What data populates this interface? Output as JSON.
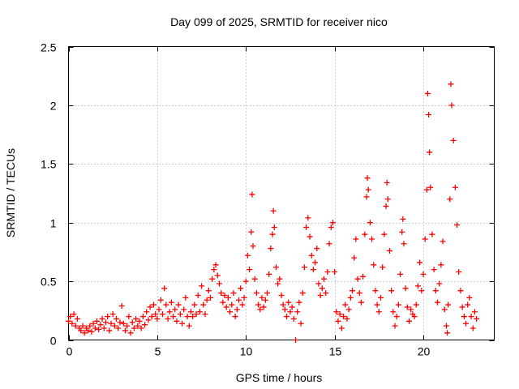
{
  "chart_data": {
    "type": "scatter",
    "title": "Day 099 of 2025, SRMTID for receiver nico",
    "xlabel": "GPS time / hours",
    "ylabel": "SRMTID / TECUs",
    "xlim": [
      0,
      24
    ],
    "ylim": [
      0,
      2.5
    ],
    "x_ticks": [
      0,
      5,
      10,
      15,
      20
    ],
    "x_tick_labels": [
      "0",
      "5",
      "10",
      "15",
      "20"
    ],
    "y_ticks": [
      0,
      0.5,
      1,
      1.5,
      2,
      2.5
    ],
    "y_tick_labels": [
      "0",
      "0.5",
      "1",
      "1.5",
      "2",
      "2.5"
    ],
    "grid": true,
    "marker": "plus",
    "series": [
      {
        "name": "SRMTID",
        "color": "#ff0000",
        "points": [
          [
            0.0,
            0.16
          ],
          [
            0.1,
            0.2
          ],
          [
            0.2,
            0.14
          ],
          [
            0.3,
            0.22
          ],
          [
            0.4,
            0.12
          ],
          [
            0.5,
            0.18
          ],
          [
            0.6,
            0.1
          ],
          [
            0.7,
            0.08
          ],
          [
            0.8,
            0.12
          ],
          [
            0.9,
            0.06
          ],
          [
            1.0,
            0.1
          ],
          [
            1.1,
            0.08
          ],
          [
            1.2,
            0.12
          ],
          [
            1.3,
            0.07
          ],
          [
            1.4,
            0.14
          ],
          [
            1.5,
            0.1
          ],
          [
            1.6,
            0.16
          ],
          [
            1.7,
            0.09
          ],
          [
            1.8,
            0.13
          ],
          [
            1.9,
            0.18
          ],
          [
            2.0,
            0.1
          ],
          [
            2.1,
            0.15
          ],
          [
            2.2,
            0.2
          ],
          [
            2.3,
            0.08
          ],
          [
            2.4,
            0.14
          ],
          [
            2.5,
            0.22
          ],
          [
            2.6,
            0.12
          ],
          [
            2.7,
            0.18
          ],
          [
            2.8,
            0.1
          ],
          [
            2.9,
            0.15
          ],
          [
            3.0,
            0.29
          ],
          [
            3.1,
            0.14
          ],
          [
            3.2,
            0.08
          ],
          [
            3.3,
            0.12
          ],
          [
            3.4,
            0.2
          ],
          [
            3.5,
            0.06
          ],
          [
            3.6,
            0.15
          ],
          [
            3.7,
            0.1
          ],
          [
            3.8,
            0.18
          ],
          [
            3.9,
            0.12
          ],
          [
            4.0,
            0.16
          ],
          [
            4.1,
            0.1
          ],
          [
            4.2,
            0.2
          ],
          [
            4.3,
            0.13
          ],
          [
            4.4,
            0.24
          ],
          [
            4.5,
            0.17
          ],
          [
            4.6,
            0.28
          ],
          [
            4.7,
            0.2
          ],
          [
            4.8,
            0.3
          ],
          [
            4.9,
            0.22
          ],
          [
            5.0,
            0.18
          ],
          [
            5.1,
            0.26
          ],
          [
            5.2,
            0.34
          ],
          [
            5.3,
            0.22
          ],
          [
            5.4,
            0.44
          ],
          [
            5.5,
            0.3
          ],
          [
            5.6,
            0.18
          ],
          [
            5.7,
            0.24
          ],
          [
            5.8,
            0.32
          ],
          [
            5.9,
            0.2
          ],
          [
            6.0,
            0.26
          ],
          [
            6.1,
            0.16
          ],
          [
            6.2,
            0.3
          ],
          [
            6.3,
            0.22
          ],
          [
            6.4,
            0.14
          ],
          [
            6.5,
            0.26
          ],
          [
            6.6,
            0.36
          ],
          [
            6.7,
            0.2
          ],
          [
            6.8,
            0.12
          ],
          [
            6.9,
            0.24
          ],
          [
            7.0,
            0.2
          ],
          [
            7.1,
            0.3
          ],
          [
            7.2,
            0.22
          ],
          [
            7.3,
            0.38
          ],
          [
            7.4,
            0.24
          ],
          [
            7.5,
            0.46
          ],
          [
            7.6,
            0.3
          ],
          [
            7.7,
            0.22
          ],
          [
            7.8,
            0.34
          ],
          [
            7.9,
            0.42
          ],
          [
            8.0,
            0.36
          ],
          [
            8.1,
            0.52
          ],
          [
            8.2,
            0.6
          ],
          [
            8.3,
            0.64
          ],
          [
            8.4,
            0.55
          ],
          [
            8.5,
            0.48
          ],
          [
            8.6,
            0.4
          ],
          [
            8.7,
            0.32
          ],
          [
            8.8,
            0.38
          ],
          [
            8.9,
            0.28
          ],
          [
            9.0,
            0.36
          ],
          [
            9.1,
            0.24
          ],
          [
            9.2,
            0.3
          ],
          [
            9.3,
            0.4
          ],
          [
            9.4,
            0.2
          ],
          [
            9.5,
            0.26
          ],
          [
            9.6,
            0.34
          ],
          [
            9.7,
            0.44
          ],
          [
            9.8,
            0.3
          ],
          [
            9.9,
            0.36
          ],
          [
            10.0,
            0.5
          ],
          [
            10.1,
            0.72
          ],
          [
            10.2,
            0.6
          ],
          [
            10.3,
            0.92
          ],
          [
            10.35,
            1.24
          ],
          [
            10.4,
            0.8
          ],
          [
            10.5,
            0.52
          ],
          [
            10.6,
            0.4
          ],
          [
            10.7,
            0.3
          ],
          [
            10.8,
            0.26
          ],
          [
            10.9,
            0.36
          ],
          [
            11.0,
            0.28
          ],
          [
            11.1,
            0.34
          ],
          [
            11.2,
            0.4
          ],
          [
            11.3,
            0.56
          ],
          [
            11.4,
            0.78
          ],
          [
            11.5,
            0.9
          ],
          [
            11.55,
            1.1
          ],
          [
            11.6,
            0.96
          ],
          [
            11.7,
            0.62
          ],
          [
            11.8,
            0.48
          ],
          [
            11.9,
            0.52
          ],
          [
            12.0,
            0.38
          ],
          [
            12.1,
            0.3
          ],
          [
            12.2,
            0.26
          ],
          [
            12.3,
            0.2
          ],
          [
            12.4,
            0.32
          ],
          [
            12.5,
            0.24
          ],
          [
            12.6,
            0.28
          ],
          [
            12.7,
            0.18
          ],
          [
            12.8,
            0.0
          ],
          [
            12.9,
            0.24
          ],
          [
            13.0,
            0.32
          ],
          [
            13.1,
            0.14
          ],
          [
            13.2,
            0.4
          ],
          [
            13.3,
            0.62
          ],
          [
            13.4,
            0.96
          ],
          [
            13.5,
            1.04
          ],
          [
            13.6,
            0.88
          ],
          [
            13.7,
            0.72
          ],
          [
            13.8,
            0.6
          ],
          [
            13.9,
            0.66
          ],
          [
            14.0,
            0.78
          ],
          [
            14.1,
            0.48
          ],
          [
            14.2,
            0.38
          ],
          [
            14.3,
            0.44
          ],
          [
            14.4,
            0.52
          ],
          [
            14.5,
            0.4
          ],
          [
            14.6,
            0.58
          ],
          [
            14.7,
            0.82
          ],
          [
            14.8,
            0.96
          ],
          [
            14.9,
            1.0
          ],
          [
            15.0,
            0.58
          ],
          [
            15.1,
            0.24
          ],
          [
            15.2,
            0.16
          ],
          [
            15.3,
            0.22
          ],
          [
            15.4,
            0.1
          ],
          [
            15.5,
            0.2
          ],
          [
            15.6,
            0.3
          ],
          [
            15.7,
            0.18
          ],
          [
            15.8,
            0.26
          ],
          [
            15.9,
            0.36
          ],
          [
            16.0,
            0.42
          ],
          [
            16.1,
            0.7
          ],
          [
            16.2,
            0.86
          ],
          [
            16.3,
            0.52
          ],
          [
            16.4,
            0.4
          ],
          [
            16.5,
            0.32
          ],
          [
            16.6,
            0.54
          ],
          [
            16.7,
            0.9
          ],
          [
            16.8,
            1.22
          ],
          [
            16.85,
            1.38
          ],
          [
            16.9,
            1.28
          ],
          [
            17.0,
            1.0
          ],
          [
            17.1,
            0.86
          ],
          [
            17.2,
            0.64
          ],
          [
            17.3,
            0.42
          ],
          [
            17.4,
            0.3
          ],
          [
            17.5,
            0.24
          ],
          [
            17.6,
            0.36
          ],
          [
            17.7,
            0.62
          ],
          [
            17.8,
            0.9
          ],
          [
            17.9,
            1.14
          ],
          [
            17.95,
            1.34
          ],
          [
            18.0,
            1.2
          ],
          [
            18.1,
            0.76
          ],
          [
            18.2,
            0.42
          ],
          [
            18.3,
            0.24
          ],
          [
            18.4,
            0.12
          ],
          [
            18.5,
            0.2
          ],
          [
            18.6,
            0.3
          ],
          [
            18.7,
            0.56
          ],
          [
            18.8,
            0.92
          ],
          [
            18.85,
            1.03
          ],
          [
            18.9,
            0.82
          ],
          [
            19.0,
            0.44
          ],
          [
            19.1,
            0.28
          ],
          [
            19.2,
            0.16
          ],
          [
            19.3,
            0.26
          ],
          [
            19.4,
            0.22
          ],
          [
            19.5,
            0.2
          ],
          [
            19.6,
            0.3
          ],
          [
            19.7,
            0.46
          ],
          [
            19.8,
            0.66
          ],
          [
            19.9,
            0.42
          ],
          [
            20.0,
            0.56
          ],
          [
            20.1,
            0.86
          ],
          [
            20.2,
            1.28
          ],
          [
            20.25,
            2.1
          ],
          [
            20.3,
            1.92
          ],
          [
            20.35,
            1.6
          ],
          [
            20.4,
            1.3
          ],
          [
            20.5,
            0.9
          ],
          [
            20.6,
            0.6
          ],
          [
            20.7,
            0.42
          ],
          [
            20.8,
            0.32
          ],
          [
            20.9,
            0.48
          ],
          [
            21.0,
            0.64
          ],
          [
            21.1,
            0.84
          ],
          [
            21.2,
            0.26
          ],
          [
            21.3,
            0.12
          ],
          [
            21.35,
            0.06
          ],
          [
            21.4,
            0.3
          ],
          [
            21.5,
            1.2
          ],
          [
            21.55,
            2.18
          ],
          [
            21.6,
            2.0
          ],
          [
            21.7,
            1.7
          ],
          [
            21.8,
            1.3
          ],
          [
            21.9,
            0.98
          ],
          [
            22.0,
            0.58
          ],
          [
            22.1,
            0.42
          ],
          [
            22.2,
            0.28
          ],
          [
            22.3,
            0.2
          ],
          [
            22.4,
            0.14
          ],
          [
            22.5,
            0.3
          ],
          [
            22.6,
            0.36
          ],
          [
            22.7,
            0.2
          ],
          [
            22.8,
            0.1
          ],
          [
            22.9,
            0.24
          ],
          [
            23.0,
            0.18
          ]
        ]
      }
    ]
  }
}
